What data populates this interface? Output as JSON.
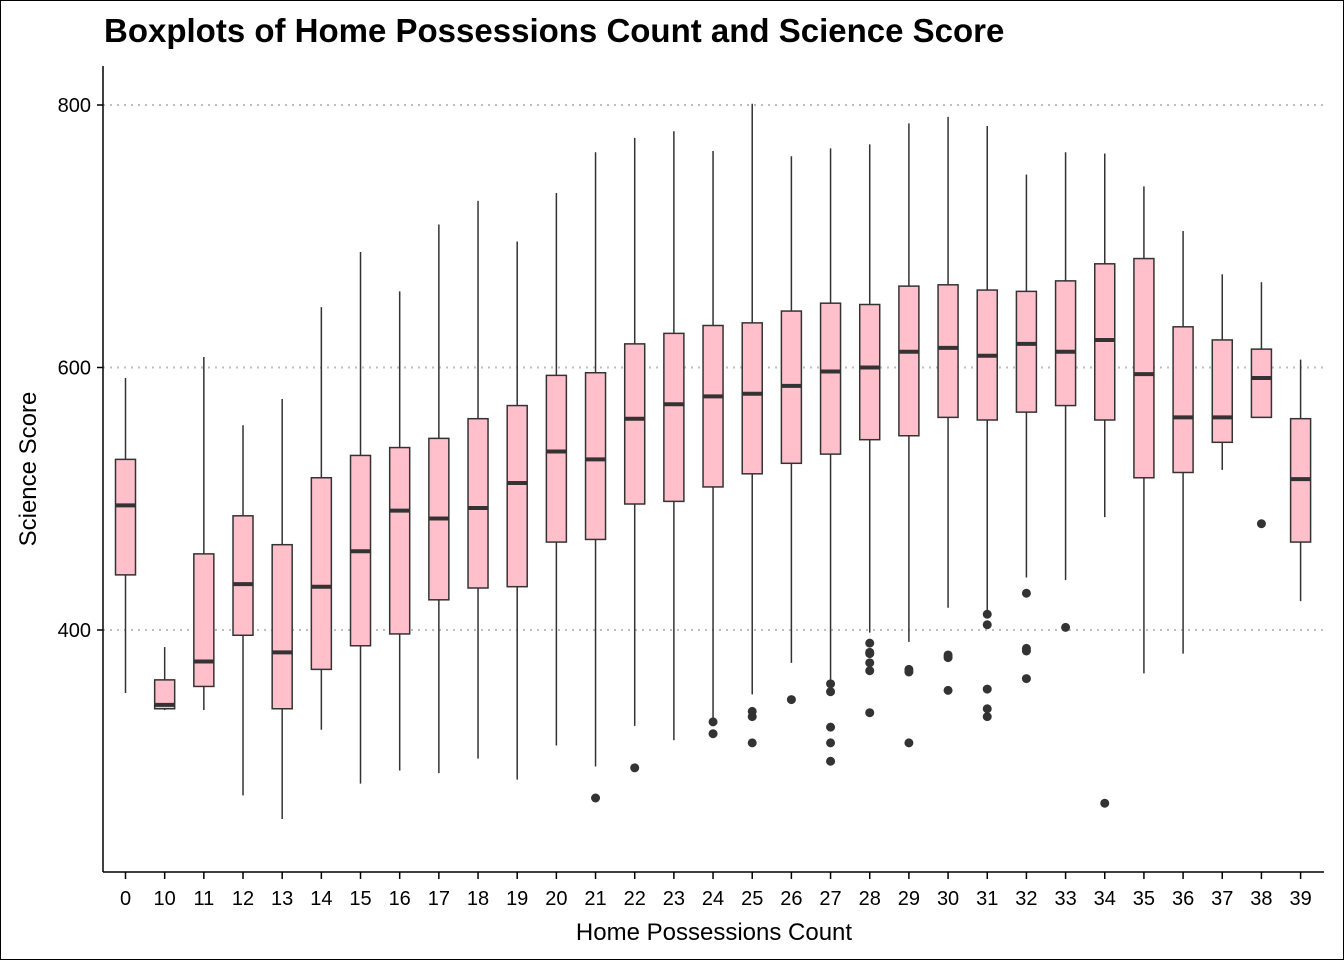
{
  "chart_data": {
    "type": "boxplot",
    "title": "Boxplots of Home Possessions Count and Science Score",
    "xlabel": "Home Possessions Count",
    "ylabel": "Science Score",
    "ylim": [
      240,
      830
    ],
    "yticks": [
      400,
      600,
      800
    ],
    "grid": "horizontal dotted at major y ticks",
    "legend": "none",
    "colors": {
      "box_fill": "#FFC0CB",
      "stroke": "#333333",
      "grid": "#BEBEBE"
    },
    "categories": [
      "0",
      "10",
      "11",
      "12",
      "13",
      "14",
      "15",
      "16",
      "17",
      "18",
      "19",
      "20",
      "21",
      "22",
      "23",
      "24",
      "25",
      "26",
      "27",
      "28",
      "29",
      "30",
      "31",
      "32",
      "33",
      "34",
      "35",
      "36",
      "37",
      "38",
      "39"
    ],
    "boxes": [
      {
        "x": "0",
        "low": 352,
        "q1": 442,
        "median": 495,
        "q3": 530,
        "high": 592,
        "outliers": []
      },
      {
        "x": "10",
        "low": 339,
        "q1": 340,
        "median": 343,
        "q3": 362,
        "high": 387,
        "outliers": []
      },
      {
        "x": "11",
        "low": 339,
        "q1": 357,
        "median": 376,
        "q3": 458,
        "high": 608,
        "outliers": []
      },
      {
        "x": "12",
        "low": 274,
        "q1": 396,
        "median": 435,
        "q3": 487,
        "high": 556,
        "outliers": []
      },
      {
        "x": "13",
        "low": 256,
        "q1": 340,
        "median": 383,
        "q3": 465,
        "high": 576,
        "outliers": []
      },
      {
        "x": "14",
        "low": 324,
        "q1": 370,
        "median": 433,
        "q3": 516,
        "high": 646,
        "outliers": []
      },
      {
        "x": "15",
        "low": 283,
        "q1": 388,
        "median": 460,
        "q3": 533,
        "high": 688,
        "outliers": []
      },
      {
        "x": "16",
        "low": 293,
        "q1": 397,
        "median": 491,
        "q3": 539,
        "high": 658,
        "outliers": []
      },
      {
        "x": "17",
        "low": 291,
        "q1": 423,
        "median": 485,
        "q3": 546,
        "high": 709,
        "outliers": []
      },
      {
        "x": "18",
        "low": 302,
        "q1": 432,
        "median": 493,
        "q3": 561,
        "high": 727,
        "outliers": []
      },
      {
        "x": "19",
        "low": 286,
        "q1": 433,
        "median": 512,
        "q3": 571,
        "high": 696,
        "outliers": []
      },
      {
        "x": "20",
        "low": 312,
        "q1": 467,
        "median": 536,
        "q3": 594,
        "high": 733,
        "outliers": []
      },
      {
        "x": "21",
        "low": 296,
        "q1": 469,
        "median": 530,
        "q3": 596,
        "high": 764,
        "outliers": [
          272
        ]
      },
      {
        "x": "22",
        "low": 327,
        "q1": 496,
        "median": 561,
        "q3": 618,
        "high": 775,
        "outliers": [
          295
        ]
      },
      {
        "x": "23",
        "low": 316,
        "q1": 498,
        "median": 572,
        "q3": 626,
        "high": 780,
        "outliers": []
      },
      {
        "x": "24",
        "low": 330,
        "q1": 509,
        "median": 578,
        "q3": 632,
        "high": 765,
        "outliers": [
          321,
          330
        ]
      },
      {
        "x": "25",
        "low": 351,
        "q1": 519,
        "median": 580,
        "q3": 634,
        "high": 801,
        "outliers": [
          314,
          334,
          338
        ]
      },
      {
        "x": "26",
        "low": 375,
        "q1": 527,
        "median": 586,
        "q3": 643,
        "high": 761,
        "outliers": [
          347
        ]
      },
      {
        "x": "27",
        "low": 362,
        "q1": 534,
        "median": 597,
        "q3": 649,
        "high": 767,
        "outliers": [
          300,
          314,
          326,
          353,
          359
        ]
      },
      {
        "x": "28",
        "low": 398,
        "q1": 545,
        "median": 600,
        "q3": 648,
        "high": 770,
        "outliers": [
          337,
          369,
          375,
          382,
          383,
          390
        ]
      },
      {
        "x": "29",
        "low": 391,
        "q1": 548,
        "median": 612,
        "q3": 662,
        "high": 786,
        "outliers": [
          314,
          368,
          370
        ]
      },
      {
        "x": "30",
        "low": 417,
        "q1": 562,
        "median": 615,
        "q3": 663,
        "high": 791,
        "outliers": [
          354,
          379,
          381
        ]
      },
      {
        "x": "31",
        "low": 414,
        "q1": 560,
        "median": 609,
        "q3": 659,
        "high": 784,
        "outliers": [
          334,
          340,
          355,
          404,
          412
        ]
      },
      {
        "x": "32",
        "low": 440,
        "q1": 566,
        "median": 618,
        "q3": 658,
        "high": 747,
        "outliers": [
          363,
          384,
          386,
          428
        ]
      },
      {
        "x": "33",
        "low": 438,
        "q1": 571,
        "median": 612,
        "q3": 666,
        "high": 764,
        "outliers": [
          402
        ]
      },
      {
        "x": "34",
        "low": 486,
        "q1": 560,
        "median": 621,
        "q3": 679,
        "high": 763,
        "outliers": [
          268
        ]
      },
      {
        "x": "35",
        "low": 367,
        "q1": 516,
        "median": 595,
        "q3": 683,
        "high": 738,
        "outliers": []
      },
      {
        "x": "36",
        "low": 382,
        "q1": 520,
        "median": 562,
        "q3": 631,
        "high": 704,
        "outliers": []
      },
      {
        "x": "37",
        "low": 522,
        "q1": 543,
        "median": 562,
        "q3": 621,
        "high": 671,
        "outliers": []
      },
      {
        "x": "38",
        "low": 562,
        "q1": 562,
        "median": 592,
        "q3": 614,
        "high": 665,
        "outliers": [
          481
        ]
      },
      {
        "x": "39",
        "low": 422,
        "q1": 467,
        "median": 515,
        "q3": 561,
        "high": 606,
        "outliers": []
      }
    ]
  }
}
